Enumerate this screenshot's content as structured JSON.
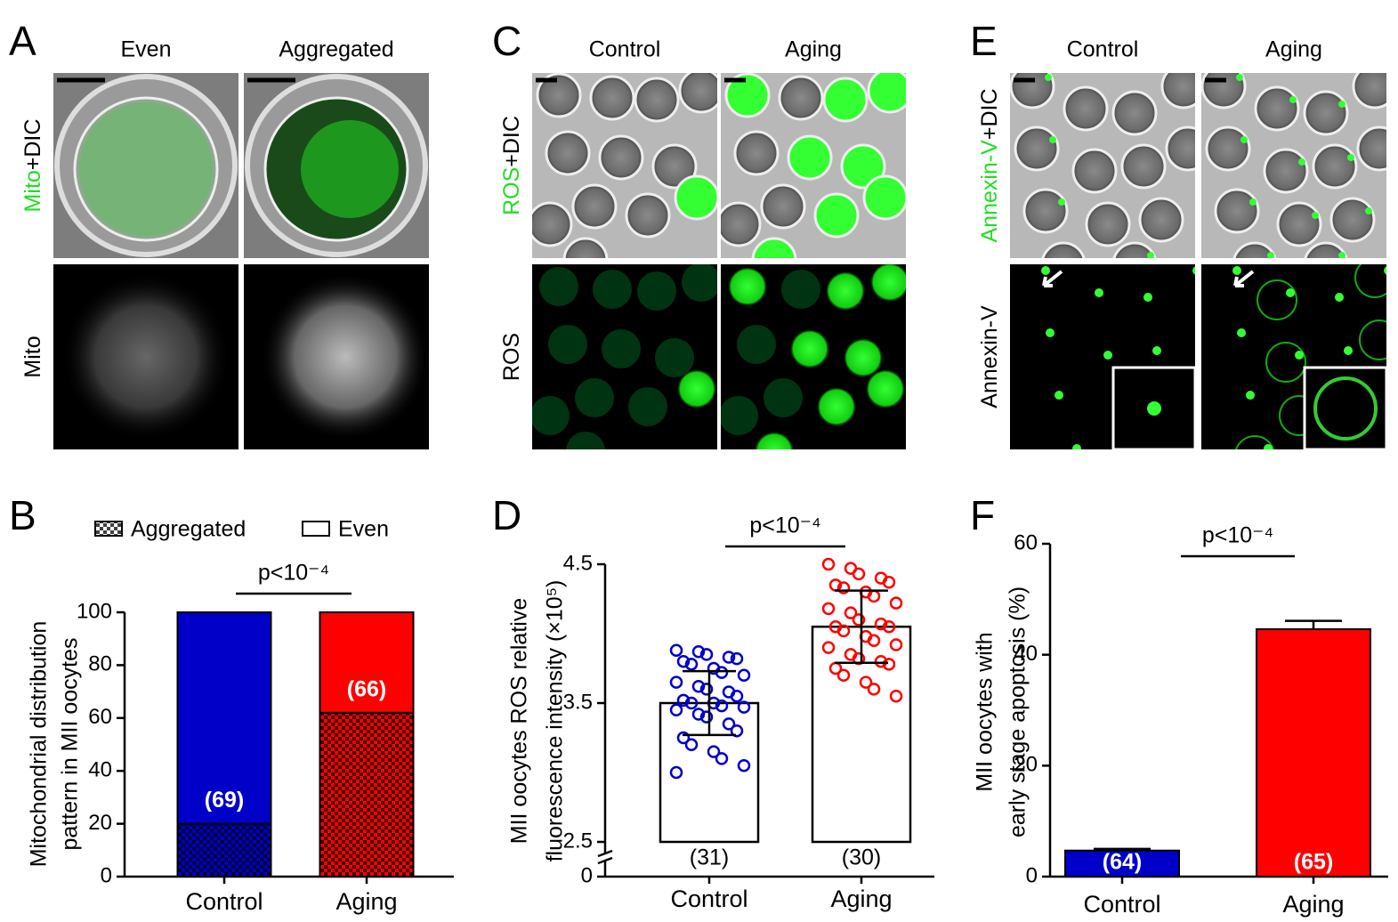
{
  "images": [
    {
      "letter": "A",
      "columns": [
        "Even",
        "Aggregated"
      ],
      "rows": [
        [
          {
            "text": "Mito",
            "color": "#22dd22"
          },
          {
            "text": "+DIC"
          }
        ],
        [
          {
            "text": "Mito"
          }
        ]
      ]
    },
    {
      "letter": "C",
      "columns": [
        "Control",
        "Aging"
      ],
      "rows": [
        [
          {
            "text": "ROS",
            "color": "#22dd22"
          },
          {
            "text": "+DIC"
          }
        ],
        [
          {
            "text": "ROS"
          }
        ]
      ]
    },
    {
      "letter": "E",
      "columns": [
        "Control",
        "Aging"
      ],
      "rows": [
        [
          {
            "text": "Annexin-V",
            "color": "#22dd22"
          },
          {
            "text": "+DIC"
          }
        ],
        [
          {
            "text": "Annexin-V"
          }
        ]
      ]
    }
  ],
  "chart_data": [
    {
      "type": "stacked-bar",
      "letter": "B",
      "ylabel": [
        "Mitochondrial distribution",
        "pattern in MII oocytes"
      ],
      "categories": [
        "Control",
        "Aging"
      ],
      "colors": [
        "#0000c8",
        "#ff0000"
      ],
      "series": [
        {
          "name": "Aggregated",
          "pattern": "checker",
          "values": [
            20,
            62
          ]
        },
        {
          "name": "Even",
          "pattern": "none",
          "values": [
            80,
            38
          ]
        }
      ],
      "n_labels": [
        "(69)",
        "(66)"
      ],
      "annotation": "p<10⁻⁴",
      "ylim": [
        0,
        100
      ],
      "yticks": [
        0,
        20,
        40,
        60,
        80,
        100
      ]
    },
    {
      "type": "scatter-bar",
      "letter": "D",
      "ylabel": [
        "MII oocytes ROS relative",
        "fluorescence intensity (×10⁵)"
      ],
      "categories": [
        "Control",
        "Aging"
      ],
      "colors": [
        "#0000c8",
        "#ff0000"
      ],
      "values": [
        3.5,
        4.05
      ],
      "errors": [
        0.23,
        0.26
      ],
      "points": [
        [
          3.88,
          3.87,
          3.85,
          3.83,
          3.82,
          3.8,
          3.78,
          3.75,
          3.72,
          3.7,
          3.65,
          3.62,
          3.6,
          3.58,
          3.55,
          3.52,
          3.5,
          3.5,
          3.48,
          3.47,
          3.45,
          3.42,
          3.4,
          3.35,
          3.3,
          3.25,
          3.2,
          3.15,
          3.1,
          3.05,
          3.0
        ],
        [
          4.5,
          4.47,
          4.43,
          4.4,
          4.37,
          4.35,
          4.33,
          4.3,
          4.27,
          4.22,
          4.18,
          4.15,
          4.1,
          4.07,
          4.05,
          4.05,
          4.02,
          3.98,
          3.95,
          3.92,
          3.9,
          3.85,
          3.82,
          3.8,
          3.78,
          3.75,
          3.7,
          3.65,
          3.6,
          3.55
        ]
      ],
      "n_labels": [
        "(31)",
        "(30)"
      ],
      "annotation": "p<10⁻⁴",
      "axis_break": true,
      "ylim": [
        2.5,
        4.5
      ],
      "yticks": [
        0,
        2.5,
        3.5,
        4.5
      ]
    },
    {
      "type": "bar",
      "letter": "F",
      "ylabel": [
        "MII oocytes with",
        "early stage apoptosis (%)"
      ],
      "categories": [
        "Control",
        "Aging"
      ],
      "colors": [
        "#0000c8",
        "#ff0000"
      ],
      "values": [
        4.7,
        44.6
      ],
      "errors": [
        0.3,
        1.5
      ],
      "n_labels": [
        "(64)",
        "(65)"
      ],
      "annotation": "p<10⁻⁴",
      "ylim": [
        0,
        60
      ],
      "yticks": [
        0,
        20,
        40,
        60
      ]
    }
  ]
}
